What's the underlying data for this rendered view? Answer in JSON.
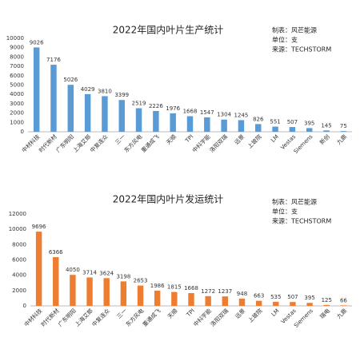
{
  "chart_data": [
    {
      "type": "bar",
      "title": "2022年国内叶片生产统计",
      "notes": [
        "制表：风芒能源",
        "单位：支",
        "来源：TECHSTORM"
      ],
      "categories": [
        "中材科技",
        "时代新材",
        "广东明阳",
        "上海艾郎",
        "中复连众",
        "三一",
        "东方风电",
        "重通成飞",
        "天顺",
        "TPI",
        "中科宇能",
        "洛阳双瑞",
        "远景",
        "上玻院",
        "LM",
        "Vestas",
        "Siemens",
        "新创",
        "九鼎"
      ],
      "values": [
        9026,
        7176,
        5026,
        4029,
        3810,
        3399,
        2519,
        2226,
        1976,
        1668,
        1547,
        1304,
        1245,
        826,
        551,
        507,
        395,
        145,
        75
      ],
      "color": "#5b9bd5",
      "ylim": [
        0,
        10000
      ],
      "yticks": [
        0,
        1000,
        2000,
        3000,
        4000,
        5000,
        6000,
        7000,
        8000,
        9000,
        10000
      ],
      "grid": false
    },
    {
      "type": "bar",
      "title": "2022年国内叶片发运统计",
      "notes": [
        "制表：风芒能源",
        "单位：支",
        "来源：TECHSTORM"
      ],
      "categories": [
        "中材科技",
        "时代新材",
        "广东明阳",
        "上海艾郎",
        "中复连众",
        "三一",
        "东方风电",
        "重通成飞",
        "天顺",
        "TPI",
        "中科宇能",
        "洛阳双瑞",
        "远景",
        "上玻院",
        "LM",
        "Vestas",
        "Siemens",
        "瑞电",
        "九鼎"
      ],
      "values": [
        9696,
        6366,
        4050,
        3714,
        3624,
        3198,
        2653,
        1986,
        1815,
        1668,
        1272,
        1237,
        948,
        663,
        535,
        507,
        395,
        125,
        66
      ],
      "color": "#ed7d31",
      "ylim": [
        0,
        12000
      ],
      "yticks": [
        0,
        2000,
        4000,
        6000,
        8000,
        10000,
        12000
      ],
      "grid": false
    }
  ]
}
